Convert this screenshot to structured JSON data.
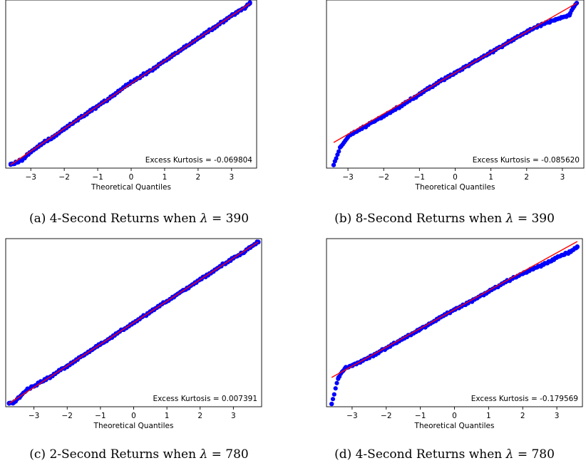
{
  "chart_data": [
    {
      "type": "scatter",
      "subtype": "qq-plot",
      "xlabel": "Theoretical Quantiles",
      "ylabel": "",
      "xticks": [
        "−3",
        "−2",
        "−1",
        "0",
        "1",
        "2",
        "3"
      ],
      "xlim": [
        -3.75,
        3.75
      ],
      "grid": false,
      "annotation": "Excess Kurtosis = -0.069804",
      "caption": {
        "prefix": "(a) 4-Second Returns when ",
        "lambda_symbol": "λ",
        "value_text": " = 390"
      },
      "series": [
        {
          "role": "sample-quantiles",
          "color": "#0000ff",
          "x": [
            -3.6,
            -3.4,
            -3.2,
            -3.0,
            -2.8,
            -2.6,
            -2.4,
            -2.0,
            -1.5,
            -1.0,
            -0.5,
            0.0,
            0.5,
            1.0,
            1.5,
            2.0,
            2.5,
            3.0,
            3.2,
            3.4,
            3.55
          ],
          "y": [
            -3.6,
            -3.5,
            -3.3,
            -3.05,
            -2.8,
            -2.6,
            -2.45,
            -2.0,
            -1.5,
            -1.0,
            -0.5,
            0.05,
            0.5,
            1.0,
            1.5,
            2.0,
            2.5,
            3.0,
            3.2,
            3.35,
            3.55
          ]
        },
        {
          "role": "reference-line",
          "color": "#ff0000",
          "x": [
            -3.6,
            3.55
          ],
          "y": [
            -3.6,
            3.55
          ]
        }
      ]
    },
    {
      "type": "scatter",
      "subtype": "qq-plot",
      "xlabel": "Theoretical Quantiles",
      "ylabel": "",
      "xticks": [
        "−3",
        "−2",
        "−1",
        "0",
        "1",
        "2",
        "3"
      ],
      "xlim": [
        -3.6,
        3.6
      ],
      "grid": false,
      "annotation": "Excess Kurtosis = -0.085620",
      "caption": {
        "prefix": "(b) 8-Second Returns when ",
        "lambda_symbol": "λ",
        "value_text": " = 390"
      },
      "series": [
        {
          "role": "sample-quantiles",
          "color": "#0000ff",
          "x": [
            -3.4,
            -3.2,
            -3.0,
            -2.8,
            -2.5,
            -2.0,
            -1.5,
            -1.0,
            -0.5,
            0.0,
            0.5,
            1.0,
            1.5,
            2.0,
            2.5,
            2.8,
            3.0,
            3.1,
            3.2,
            3.3,
            3.4
          ],
          "y": [
            -4.5,
            -3.6,
            -3.1,
            -2.9,
            -2.6,
            -2.1,
            -1.6,
            -1.05,
            -0.5,
            0.0,
            0.5,
            1.0,
            1.5,
            2.0,
            2.4,
            2.6,
            2.7,
            2.75,
            2.8,
            3.2,
            3.4
          ]
        },
        {
          "role": "reference-line",
          "color": "#ff0000",
          "x": [
            -3.4,
            3.4
          ],
          "y": [
            -3.4,
            3.4
          ]
        }
      ]
    },
    {
      "type": "scatter",
      "subtype": "qq-plot",
      "xlabel": "Theoretical Quantiles",
      "ylabel": "",
      "xticks": [
        "−3",
        "−2",
        "−1",
        "0",
        "1",
        "2",
        "3"
      ],
      "xlim": [
        -3.85,
        3.85
      ],
      "grid": false,
      "annotation": "Excess Kurtosis = 0.007391",
      "caption": {
        "prefix": "(c) 2-Second Returns when ",
        "lambda_symbol": "λ",
        "value_text": " = 780"
      },
      "series": [
        {
          "role": "sample-quantiles",
          "color": "#0000ff",
          "x": [
            -3.75,
            -3.6,
            -3.4,
            -3.2,
            -3.0,
            -2.8,
            -2.5,
            -2.0,
            -1.5,
            -1.0,
            -0.5,
            0.0,
            0.5,
            1.0,
            1.5,
            2.0,
            2.5,
            3.0,
            3.3,
            3.5,
            3.75
          ],
          "y": [
            -3.75,
            -3.7,
            -3.4,
            -3.1,
            -2.95,
            -2.75,
            -2.5,
            -2.0,
            -1.5,
            -1.0,
            -0.5,
            0.0,
            0.5,
            1.0,
            1.5,
            2.0,
            2.5,
            3.0,
            3.25,
            3.5,
            3.75
          ]
        },
        {
          "role": "reference-line",
          "color": "#ff0000",
          "x": [
            -3.75,
            3.75
          ],
          "y": [
            -3.75,
            3.75
          ]
        }
      ]
    },
    {
      "type": "scatter",
      "subtype": "qq-plot",
      "xlabel": "Theoretical Quantiles",
      "ylabel": "",
      "xticks": [
        "−3",
        "−2",
        "−1",
        "0",
        "1",
        "2",
        "3"
      ],
      "xlim": [
        -3.75,
        3.75
      ],
      "grid": false,
      "annotation": "Excess Kurtosis = -0.179569",
      "caption": {
        "prefix": "(d) 4-Second Returns when ",
        "lambda_symbol": "λ",
        "value_text": " = 780"
      },
      "series": [
        {
          "role": "sample-quantiles",
          "color": "#0000ff",
          "x": [
            -3.6,
            -3.4,
            -3.2,
            -3.0,
            -2.8,
            -2.5,
            -2.0,
            -1.5,
            -1.0,
            -0.5,
            0.0,
            0.5,
            1.0,
            1.5,
            2.0,
            2.5,
            2.8,
            3.0,
            3.2,
            3.4,
            3.6
          ],
          "y": [
            -5.0,
            -3.6,
            -3.1,
            -2.95,
            -2.8,
            -2.55,
            -2.05,
            -1.55,
            -1.05,
            -0.5,
            0.0,
            0.45,
            0.95,
            1.45,
            1.9,
            2.3,
            2.55,
            2.75,
            2.9,
            3.05,
            3.3
          ]
        },
        {
          "role": "reference-line",
          "color": "#ff0000",
          "x": [
            -3.6,
            3.6
          ],
          "y": [
            -3.6,
            3.6
          ]
        }
      ]
    }
  ]
}
